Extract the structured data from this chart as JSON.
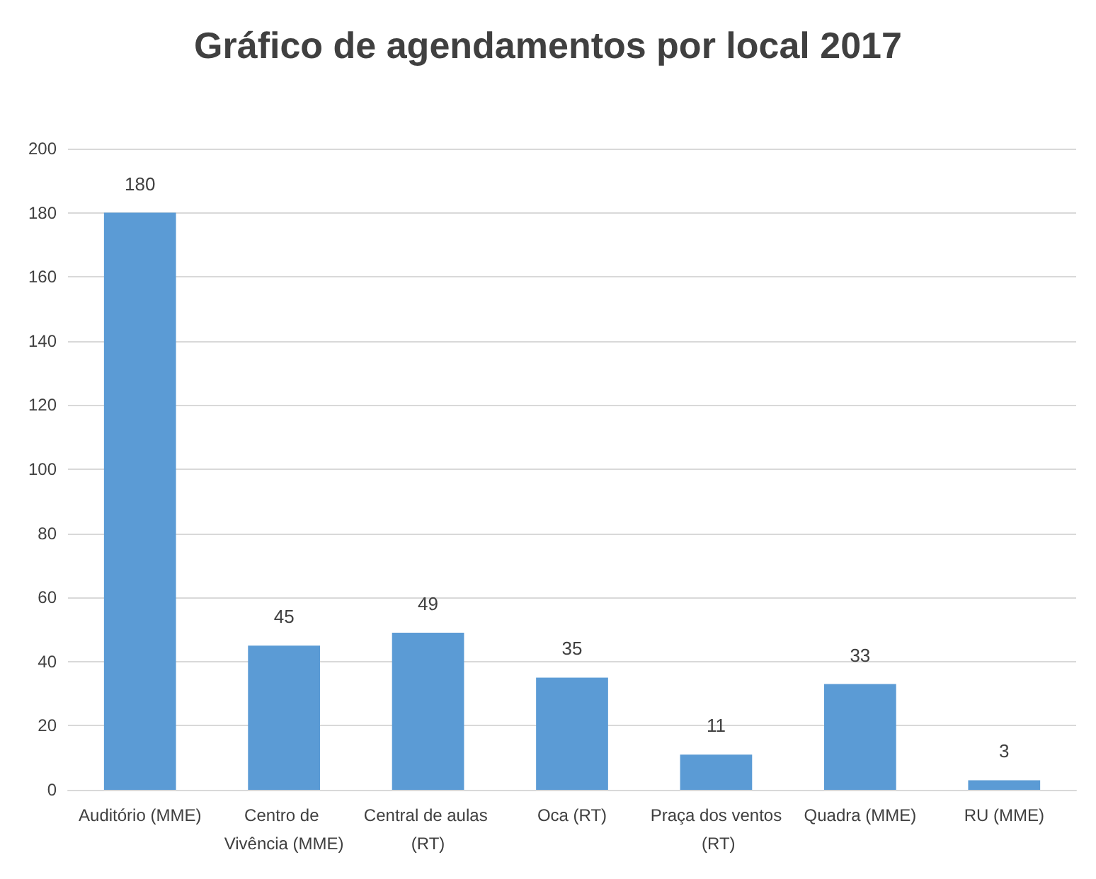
{
  "chart_data": {
    "type": "bar",
    "title": "Gráfico de agendamentos por local 2017",
    "categories": [
      "Auditório (MME)",
      "Centro de Vivência (MME)",
      "Central de aulas (RT)",
      "Oca (RT)",
      "Praça dos ventos (RT)",
      "Quadra (MME)",
      "RU (MME)"
    ],
    "values": [
      180,
      45,
      49,
      35,
      11,
      33,
      3
    ],
    "color": "#5b9bd5",
    "ylim": [
      0,
      200
    ],
    "yticks": [
      0,
      20,
      40,
      60,
      80,
      100,
      120,
      140,
      160,
      180,
      200
    ],
    "grid": "y",
    "data_labels": true
  }
}
